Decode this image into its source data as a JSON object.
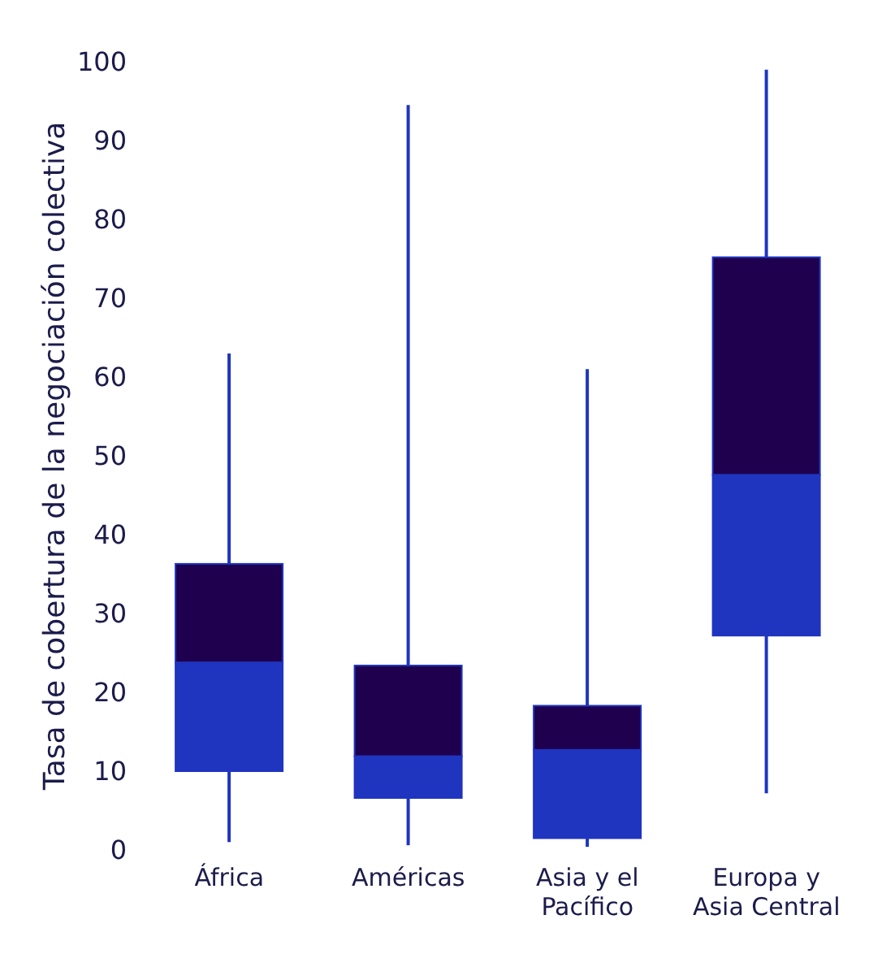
{
  "chart_data": {
    "type": "box",
    "ylabel": "Tasa de cobertura de la negociación colectiva",
    "categories": [
      "África",
      "Américas",
      "Asia y el Pacífico",
      "Europa y Asia Central"
    ],
    "colors": [
      "#1f004f",
      "#1f004f",
      "#1f004f",
      "#1f004f"
    ],
    "series": [
      {
        "color": "#1f35c0",
        "boxes": [
          {
            "low": 1,
            "q1": 10,
            "median": 23.8,
            "q3": 36.3,
            "high": 63
          },
          {
            "low": 0.6,
            "q1": 6.6,
            "median": 11.9,
            "q3": 23.4,
            "high": 94.5
          },
          {
            "low": 0.4,
            "q1": 1.5,
            "median": 12.7,
            "q3": 18.3,
            "high": 61
          },
          {
            "low": 7.2,
            "q1": 27.2,
            "median": 47.6,
            "q3": 75.2,
            "high": 99
          }
        ]
      }
    ],
    "ylim": [
      0,
      100
    ],
    "yticks": [
      0,
      10,
      20,
      30,
      40,
      50,
      60,
      70,
      80,
      90,
      100
    ],
    "grid": false
  }
}
